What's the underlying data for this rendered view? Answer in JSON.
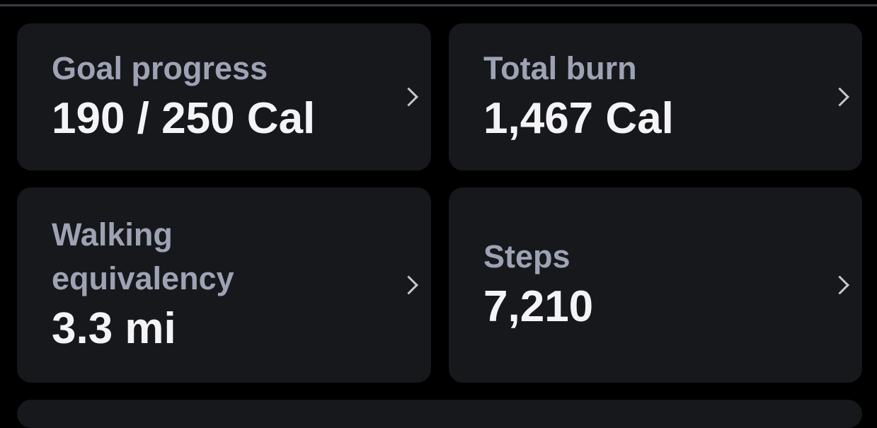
{
  "cards": [
    {
      "label": "Goal progress",
      "value": "190 / 250 Cal"
    },
    {
      "label": "Total burn",
      "value": "1,467 Cal"
    },
    {
      "label": "Walking equivalency",
      "value": "3.3 mi"
    },
    {
      "label": "Steps",
      "value": "7,210"
    }
  ],
  "icons": {
    "chevron": "chevron-right-icon"
  }
}
